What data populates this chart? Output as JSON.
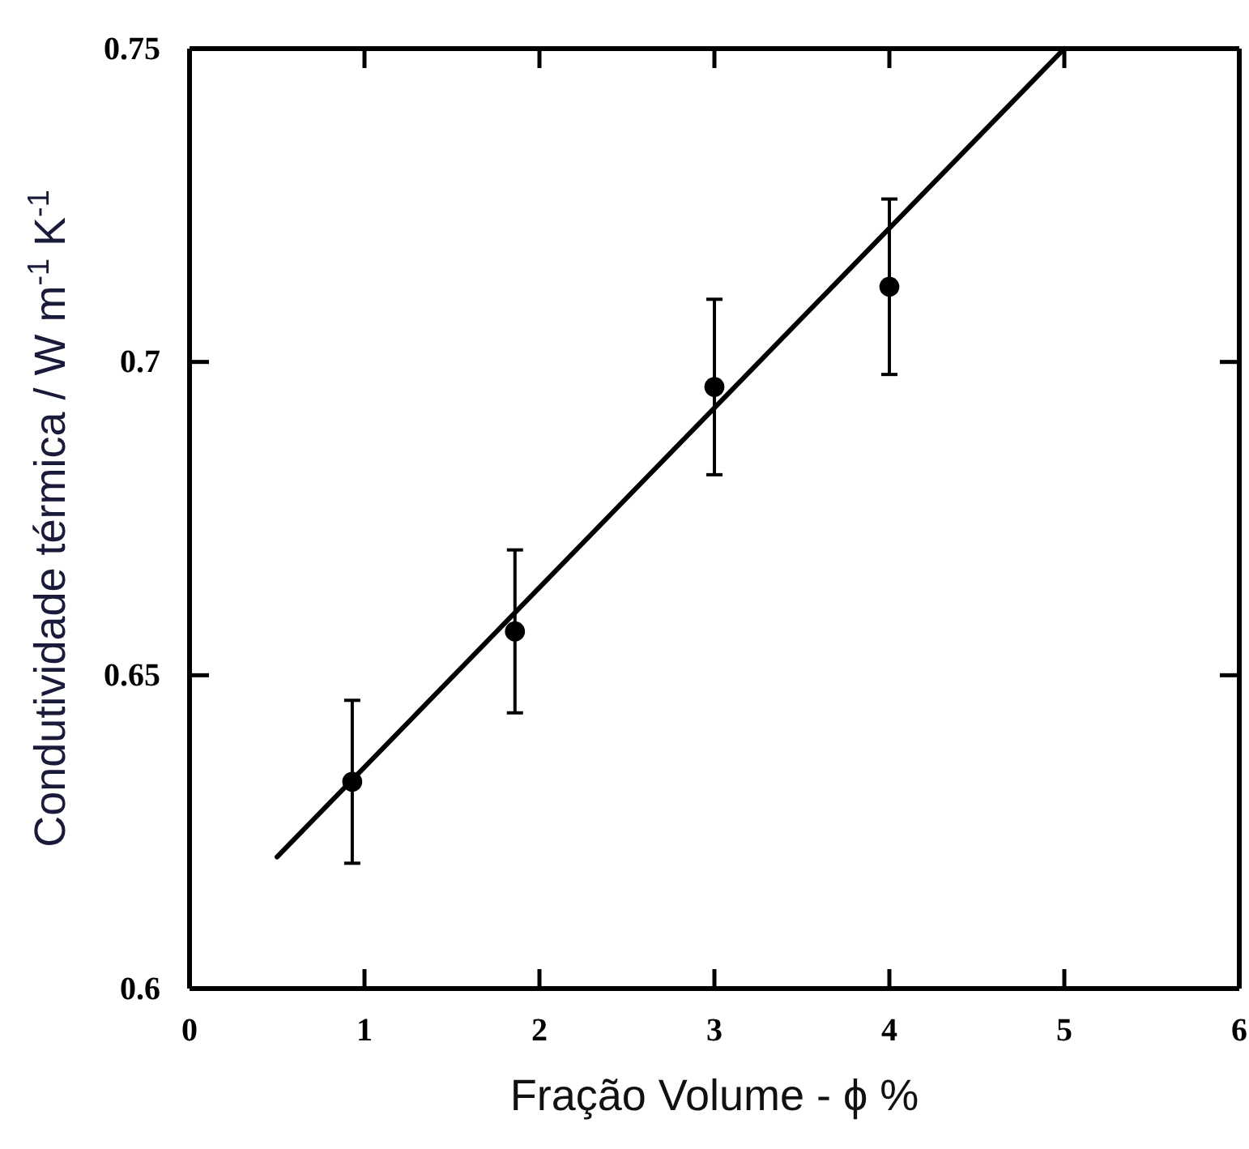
{
  "chart_data": {
    "type": "scatter",
    "xlabel": "Fração Volume - ϕ %",
    "ylabel": "Condutividade térmica / W m$^{-1}$ K$^{-1}$",
    "xlim": [
      0,
      6
    ],
    "xticks": [
      0,
      1,
      2,
      3,
      4,
      5,
      6
    ],
    "ylim": [
      0.6,
      0.75
    ],
    "yticks": [
      0.6,
      0.65,
      0.7,
      0.75
    ],
    "grid": false,
    "series": [
      {
        "color": "#000000",
        "marker": "circle",
        "x": [
          0.93,
          1.86,
          3.0,
          4.0
        ],
        "values": [
          0.633,
          0.657,
          0.696,
          0.712
        ],
        "errors": [
          0.013,
          0.013,
          0.014,
          0.014
        ]
      },
      {
        "type": "line",
        "color": "#000000",
        "marker": "none",
        "line_style": "solid",
        "x": [
          0.5,
          5.0
        ],
        "values": [
          0.621,
          0.75
        ]
      }
    ]
  }
}
